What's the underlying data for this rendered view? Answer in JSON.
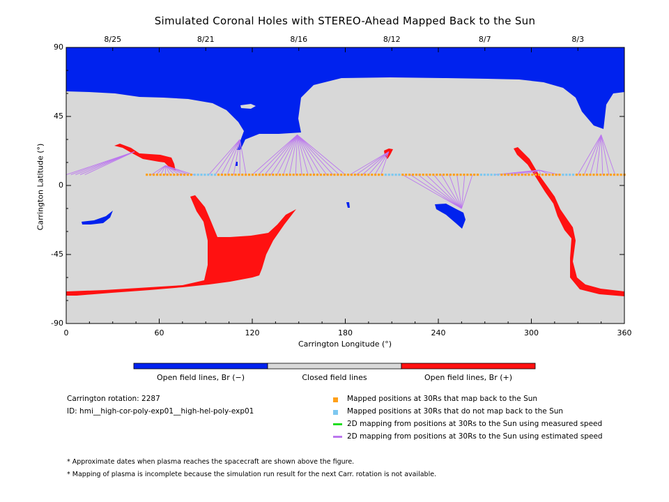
{
  "chart_data": {
    "type": "map",
    "title": "Simulated Coronal Holes with STEREO-Ahead Mapped Back to the Sun",
    "xlabel": "Carrington Longitude (°)",
    "ylabel": "Carrington Latitude (°)",
    "xlim": [
      0,
      360
    ],
    "ylim": [
      -90,
      90
    ],
    "x_ticks": [
      "0",
      "60",
      "120",
      "180",
      "240",
      "300",
      "360"
    ],
    "y_ticks": [
      "90",
      "45",
      "0",
      "-45",
      "-90"
    ],
    "top_axis_dates": [
      {
        "label": "8/25",
        "lon": 30
      },
      {
        "label": "8/21",
        "lon": 90
      },
      {
        "label": "8/16",
        "lon": 150
      },
      {
        "label": "8/12",
        "lon": 210
      },
      {
        "label": "8/7",
        "lon": 270
      },
      {
        "label": "8/3",
        "lon": 330
      }
    ],
    "colorbar": [
      {
        "label": "Open field lines, Br (−)",
        "color": "#0022ee"
      },
      {
        "label": "Closed field lines",
        "color": "#d8d8d8"
      },
      {
        "label": "Open field lines, Br (+)",
        "color": "#ff1111"
      }
    ],
    "colors": {
      "negative": "#0022ee",
      "positive": "#ff1111",
      "closed": "#d8d8d8",
      "mapped": "#ffa01a",
      "unmapped": "#7ec8f0",
      "measured": "#22dd22",
      "estimated": "#bb77ee"
    },
    "spacecraft_track": {
      "lat": 7,
      "lon_start": 52,
      "lon_end": 360,
      "step": 2.2,
      "unmapped_ranges": [
        [
          82,
          98
        ],
        [
          205,
          216
        ],
        [
          266,
          280
        ],
        [
          320,
          328
        ]
      ]
    },
    "mapping_fans": [
      {
        "foot": [
          44,
          22
        ],
        "lons": [
          0,
          3,
          6,
          9,
          12
        ]
      },
      {
        "foot": [
          64,
          13
        ],
        "lons": [
          55,
          58,
          61,
          64,
          67,
          70,
          73,
          76,
          79,
          82
        ]
      },
      {
        "foot": [
          112,
          30
        ],
        "lons": [
          92,
          96,
          100,
          104,
          108,
          112,
          116
        ]
      },
      {
        "foot": [
          149,
          33
        ],
        "lons": [
          120,
          124,
          128,
          132,
          136,
          140,
          144,
          148,
          152,
          156,
          160,
          164,
          168,
          172,
          176,
          180
        ]
      },
      {
        "foot": [
          208,
          22
        ],
        "lons": [
          183,
          187,
          191,
          195,
          199,
          203
        ]
      },
      {
        "foot": [
          255,
          -15
        ],
        "lons": [
          217,
          222,
          227,
          232,
          237,
          242,
          247,
          252,
          257,
          262
        ]
      },
      {
        "foot": [
          305,
          10
        ],
        "lons": [
          276,
          282,
          288,
          294,
          300,
          306,
          312,
          318
        ]
      },
      {
        "foot": [
          345,
          33
        ],
        "lons": [
          330,
          334,
          338,
          342,
          346,
          350,
          354
        ]
      }
    ],
    "legend": [
      {
        "label": "Mapped positions at 30Rs that map back to the Sun",
        "marker": "square",
        "color": "#ffa01a"
      },
      {
        "label": "Mapped positions at 30Rs that do not map back to the Sun",
        "marker": "square",
        "color": "#7ec8f0"
      },
      {
        "label": "2D mapping from positions at 30Rs to the Sun using measured speed",
        "marker": "line",
        "color": "#22dd22"
      },
      {
        "label": "2D mapping from positions at 30Rs to the Sun using estimated speed",
        "marker": "line",
        "color": "#bb77ee"
      }
    ]
  },
  "info": {
    "rotation": "Carrington rotation: 2287",
    "run_id": "ID: hmi__high-cor-poly-exp01__high-hel-poly-exp01"
  },
  "notes": [
    "* Approximate dates when plasma reaches the spacecraft are shown above the figure.",
    "* Mapping of plasma is incomplete because the simulation run result for the next Carr. rotation is not available."
  ]
}
